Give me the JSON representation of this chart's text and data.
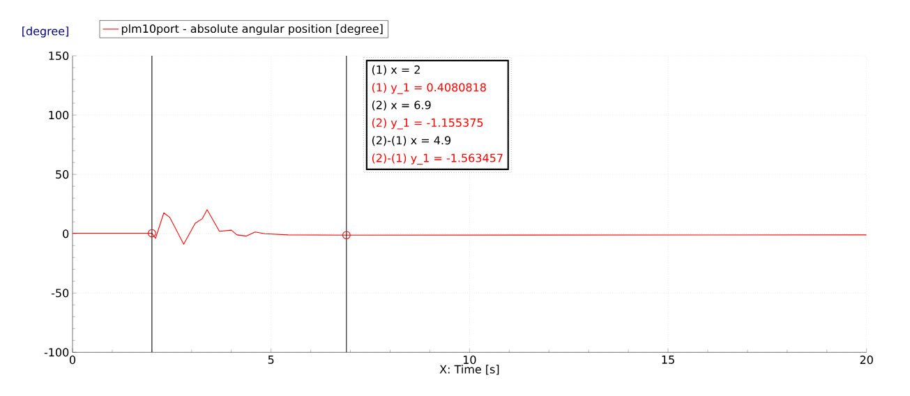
{
  "chart_data": {
    "type": "line",
    "xlabel": "X: Time [s]",
    "ylabel": "[degree]",
    "xlim": [
      0,
      20
    ],
    "ylim": [
      -100,
      150
    ],
    "xticks": [
      0,
      5,
      10,
      15,
      20
    ],
    "yticks": [
      -100,
      -50,
      0,
      50,
      100,
      150
    ],
    "grid": true,
    "legend": "top left",
    "marker": "none",
    "line_style": "solid",
    "series": [
      {
        "name": "plm10port - absolute angular position [degree]",
        "color": "#ff0000",
        "x": [
          0,
          2,
          2.09,
          2.3,
          2.45,
          2.8,
          3.09,
          3.27,
          3.39,
          3.7,
          4.0,
          4.14,
          4.38,
          4.6,
          4.85,
          5.43,
          6.9,
          20
        ],
        "values": [
          0.4,
          0.4,
          -4,
          17.6,
          13.7,
          -8.8,
          8.8,
          12.7,
          20.2,
          2,
          3,
          -1,
          -2,
          1.4,
          0,
          -1,
          -1.2,
          -1
        ]
      },
      {
        "type": "scatter",
        "marker": "circle",
        "color": "#ff0000",
        "x": [
          2,
          6.9
        ],
        "values": [
          0.4,
          -1.2
        ]
      }
    ],
    "ref_lines": [
      {
        "axis": "x",
        "value": 2,
        "color": "#000000"
      },
      {
        "axis": "x",
        "value": 6.9,
        "color": "#000000"
      }
    ],
    "annotations": [
      "(1) x = 2",
      "(1) y_1 = 0.4080818",
      "(2) x = 6.9",
      "(2) y_1 = -1.155375",
      "(2)-(1) x = 4.9",
      "(2)-(1) y_1 = -1.563457"
    ]
  }
}
